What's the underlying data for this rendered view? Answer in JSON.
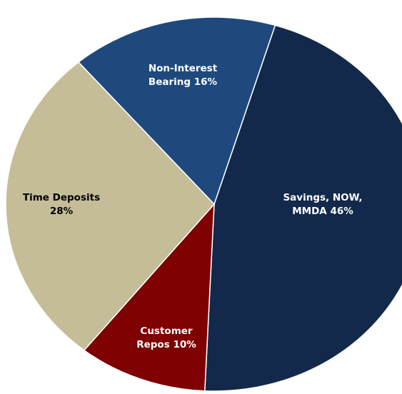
{
  "chart_data": {
    "type": "pie",
    "categories": [
      "Savings, NOW, MMDA",
      "Customer Repos",
      "Time Deposits",
      "Non-Interest Bearing"
    ],
    "values": [
      46,
      10,
      28,
      16
    ],
    "value_labels": [
      "46%",
      "10%",
      "28%",
      "16%"
    ],
    "colors": [
      "#13294b",
      "#7f0000",
      "#c4bd97",
      "#1f497d"
    ]
  }
}
